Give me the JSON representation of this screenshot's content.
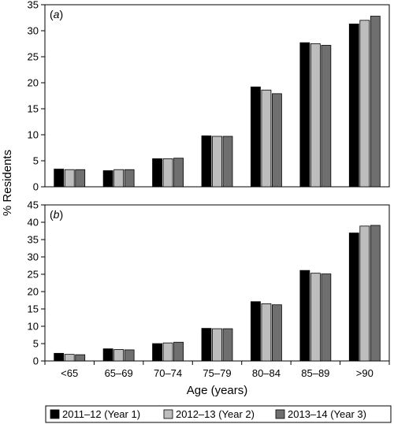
{
  "chart_data": {
    "type": "bar",
    "ylabel": "% Residents",
    "xlabel": "Age (years)",
    "categories": [
      "<65",
      "65–69",
      "70–74",
      "75–79",
      "80–84",
      "85–89",
      ">90"
    ],
    "series_names": [
      "2011–12 (Year 1)",
      "2012–13 (Year 2)",
      "2013–14 (Year 3)"
    ],
    "colors": [
      "#000000",
      "#bdbdbd",
      "#6f6f6f"
    ],
    "legend_position": "bottom",
    "grid": false,
    "panels": [
      {
        "label_prefix": "(",
        "label_letter": "a",
        "label_suffix": ")",
        "ylim": [
          0,
          35
        ],
        "yticks": [
          "0",
          "5",
          "10",
          "15",
          "20",
          "25",
          "30",
          "35"
        ],
        "series": [
          {
            "name": "2011–12 (Year 1)",
            "values": [
              3.4,
              3.1,
              5.4,
              9.8,
              19.2,
              27.7,
              31.3
            ]
          },
          {
            "name": "2012–13 (Year 2)",
            "values": [
              3.3,
              3.3,
              5.4,
              9.7,
              18.6,
              27.5,
              32.0
            ]
          },
          {
            "name": "2013–14 (Year 3)",
            "values": [
              3.3,
              3.3,
              5.5,
              9.7,
              17.9,
              27.2,
              32.8
            ]
          }
        ]
      },
      {
        "label_prefix": "(",
        "label_letter": "b",
        "label_suffix": ")",
        "ylim": [
          0,
          45
        ],
        "yticks": [
          "0",
          "5",
          "10",
          "15",
          "20",
          "25",
          "30",
          "35",
          "40",
          "45"
        ],
        "series": [
          {
            "name": "2011–12 (Year 1)",
            "values": [
              2.2,
              3.5,
              5.0,
              9.4,
              17.1,
              26.1,
              36.9
            ]
          },
          {
            "name": "2012–13 (Year 2)",
            "values": [
              1.9,
              3.3,
              5.2,
              9.3,
              16.5,
              25.3,
              38.9
            ]
          },
          {
            "name": "2013–14 (Year 3)",
            "values": [
              1.8,
              3.2,
              5.4,
              9.3,
              16.2,
              25.1,
              39.1
            ]
          }
        ]
      }
    ]
  }
}
